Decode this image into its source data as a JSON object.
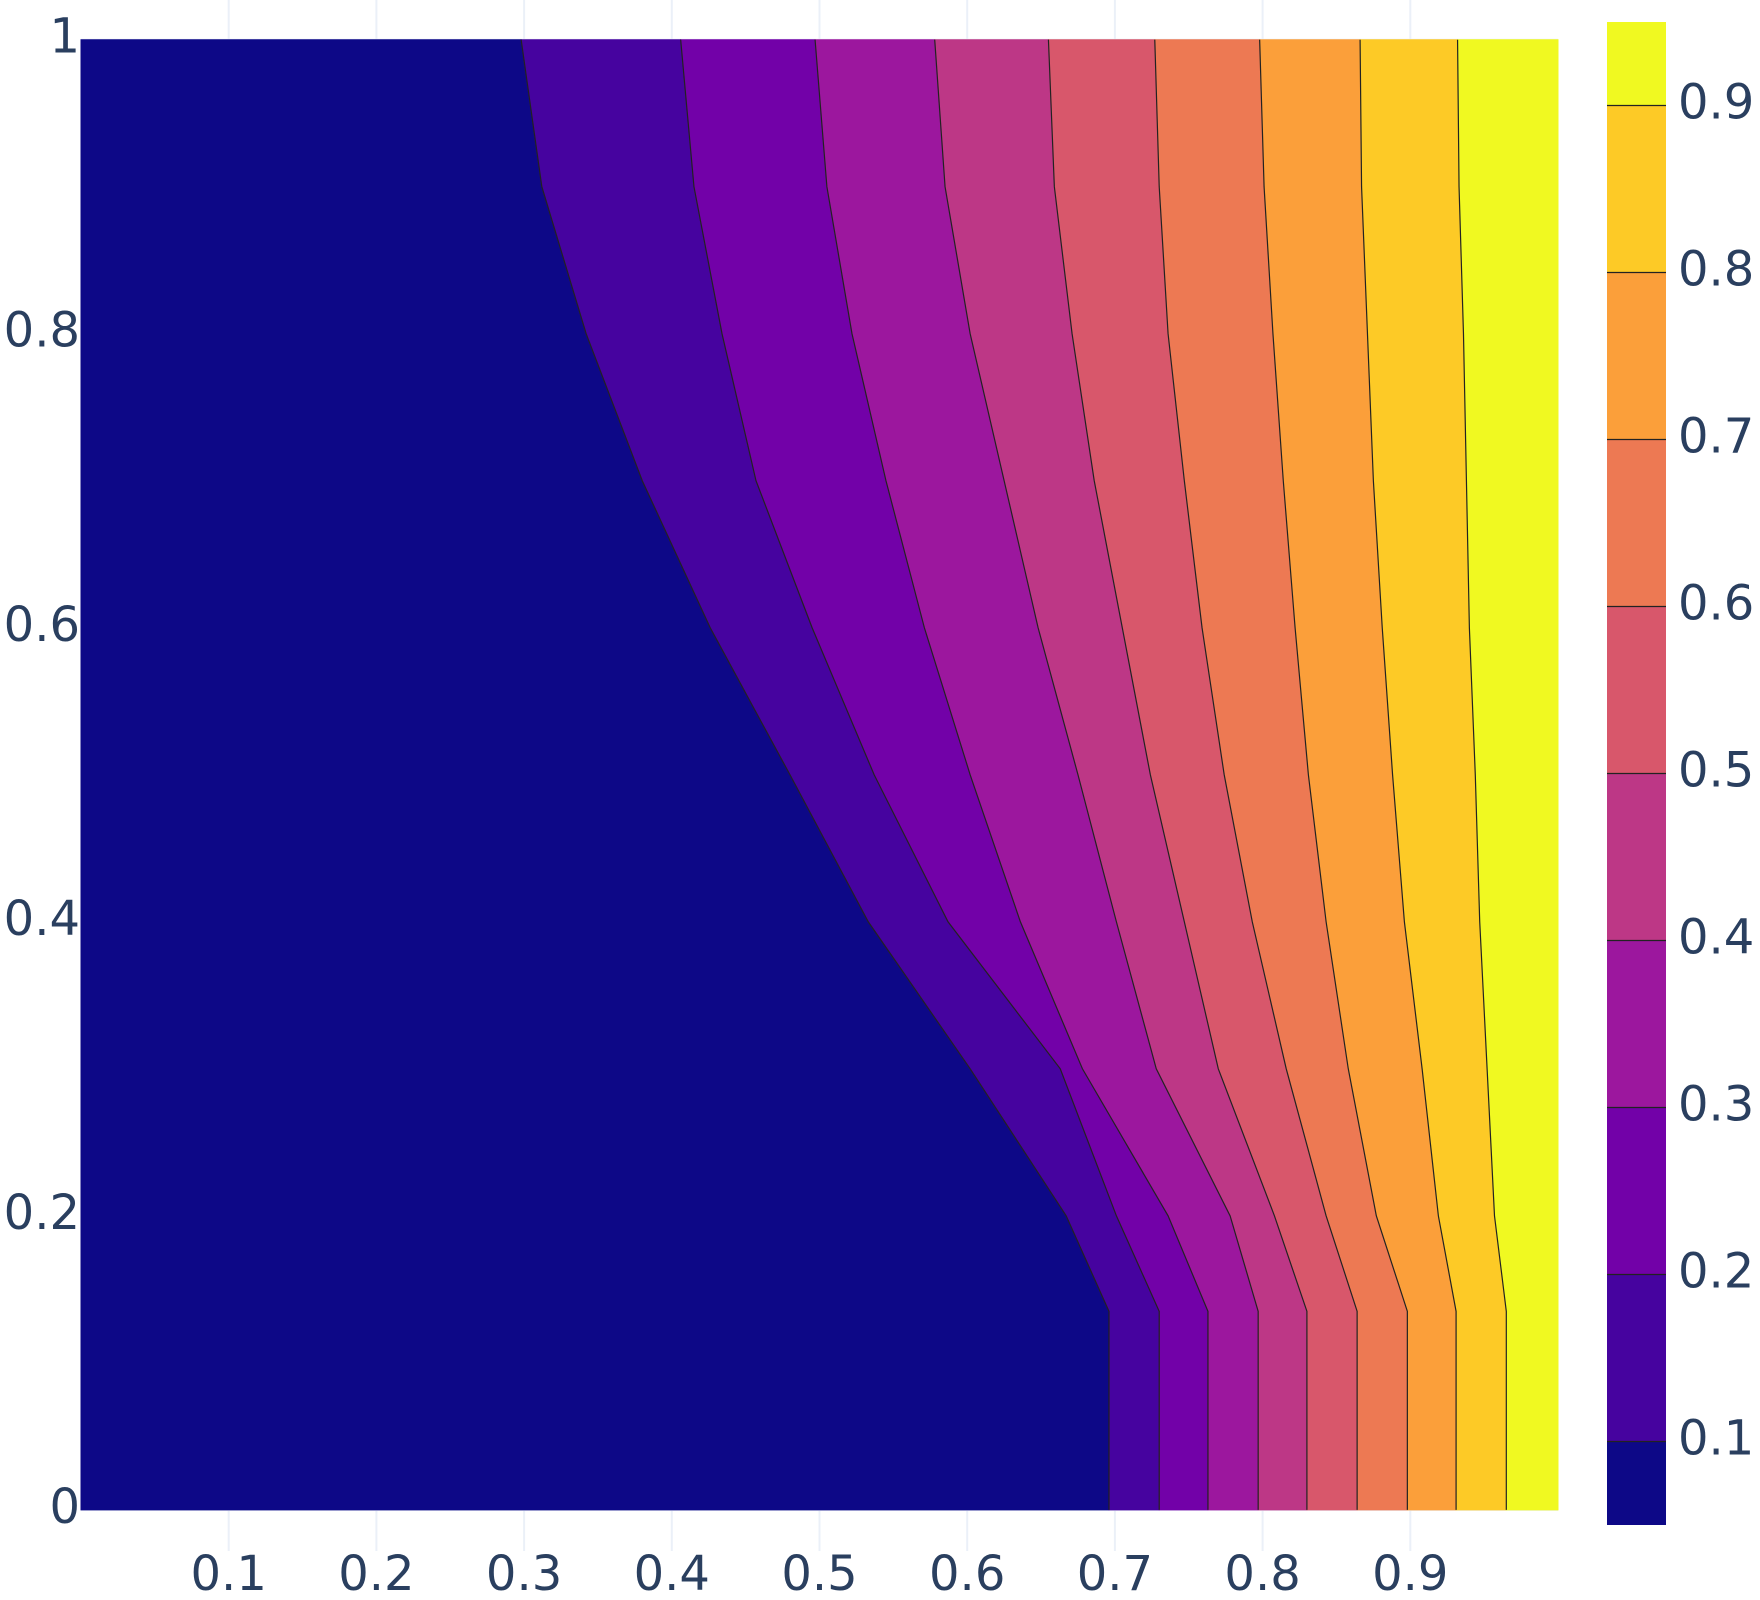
{
  "chart_data": {
    "type": "contour",
    "xlim": [
      0,
      1
    ],
    "ylim": [
      -0.028,
      1.027
    ],
    "zlim": [
      0.05,
      0.95
    ],
    "xticks": [
      0.1,
      0.2,
      0.3,
      0.4,
      0.5,
      0.6,
      0.7,
      0.8,
      0.9
    ],
    "yticks": [
      0,
      0.2,
      0.4,
      0.6,
      0.8,
      1
    ],
    "zticks": [
      0.1,
      0.2,
      0.3,
      0.4,
      0.5,
      0.6,
      0.7,
      0.8,
      0.9
    ],
    "grid": true,
    "colors": [
      "#0d0887",
      "#46039f",
      "#7201a8",
      "#9c179e",
      "#bd3786",
      "#d8576b",
      "#ed7953",
      "#fb9f3a",
      "#fdca26",
      "#f0f921"
    ],
    "contour_y": [
      0,
      0.135,
      0.2,
      0.3,
      0.4,
      0.5,
      0.6,
      0.7,
      0.8,
      0.9,
      1
    ],
    "contours": [
      {
        "level": 0.1,
        "x": [
          0.696,
          0.696,
          0.667,
          0.602,
          0.533,
          0.48,
          0.426,
          0.38,
          0.342,
          0.312,
          0.298
        ]
      },
      {
        "level": 0.2,
        "x": [
          0.73,
          0.73,
          0.701,
          0.663,
          0.587,
          0.537,
          0.495,
          0.457,
          0.434,
          0.415,
          0.406
        ]
      },
      {
        "level": 0.3,
        "x": [
          0.763,
          0.763,
          0.736,
          0.678,
          0.636,
          0.602,
          0.571,
          0.545,
          0.522,
          0.505,
          0.497
        ]
      },
      {
        "level": 0.4,
        "x": [
          0.797,
          0.797,
          0.778,
          0.728,
          0.701,
          0.675,
          0.648,
          0.625,
          0.602,
          0.585,
          0.578
        ]
      },
      {
        "level": 0.5,
        "x": [
          0.83,
          0.83,
          0.808,
          0.77,
          0.747,
          0.724,
          0.705,
          0.686,
          0.671,
          0.659,
          0.655
        ]
      },
      {
        "level": 0.6,
        "x": [
          0.864,
          0.864,
          0.843,
          0.816,
          0.793,
          0.774,
          0.759,
          0.747,
          0.736,
          0.73,
          0.727
        ]
      },
      {
        "level": 0.7,
        "x": [
          0.898,
          0.898,
          0.877,
          0.858,
          0.843,
          0.831,
          0.822,
          0.814,
          0.807,
          0.801,
          0.798
        ]
      },
      {
        "level": 0.8,
        "x": [
          0.931,
          0.931,
          0.919,
          0.908,
          0.896,
          0.888,
          0.881,
          0.875,
          0.871,
          0.867,
          0.866
        ]
      },
      {
        "level": 0.9,
        "x": [
          0.965,
          0.965,
          0.957,
          0.952,
          0.947,
          0.944,
          0.94,
          0.938,
          0.936,
          0.933,
          0.932
        ]
      }
    ]
  }
}
